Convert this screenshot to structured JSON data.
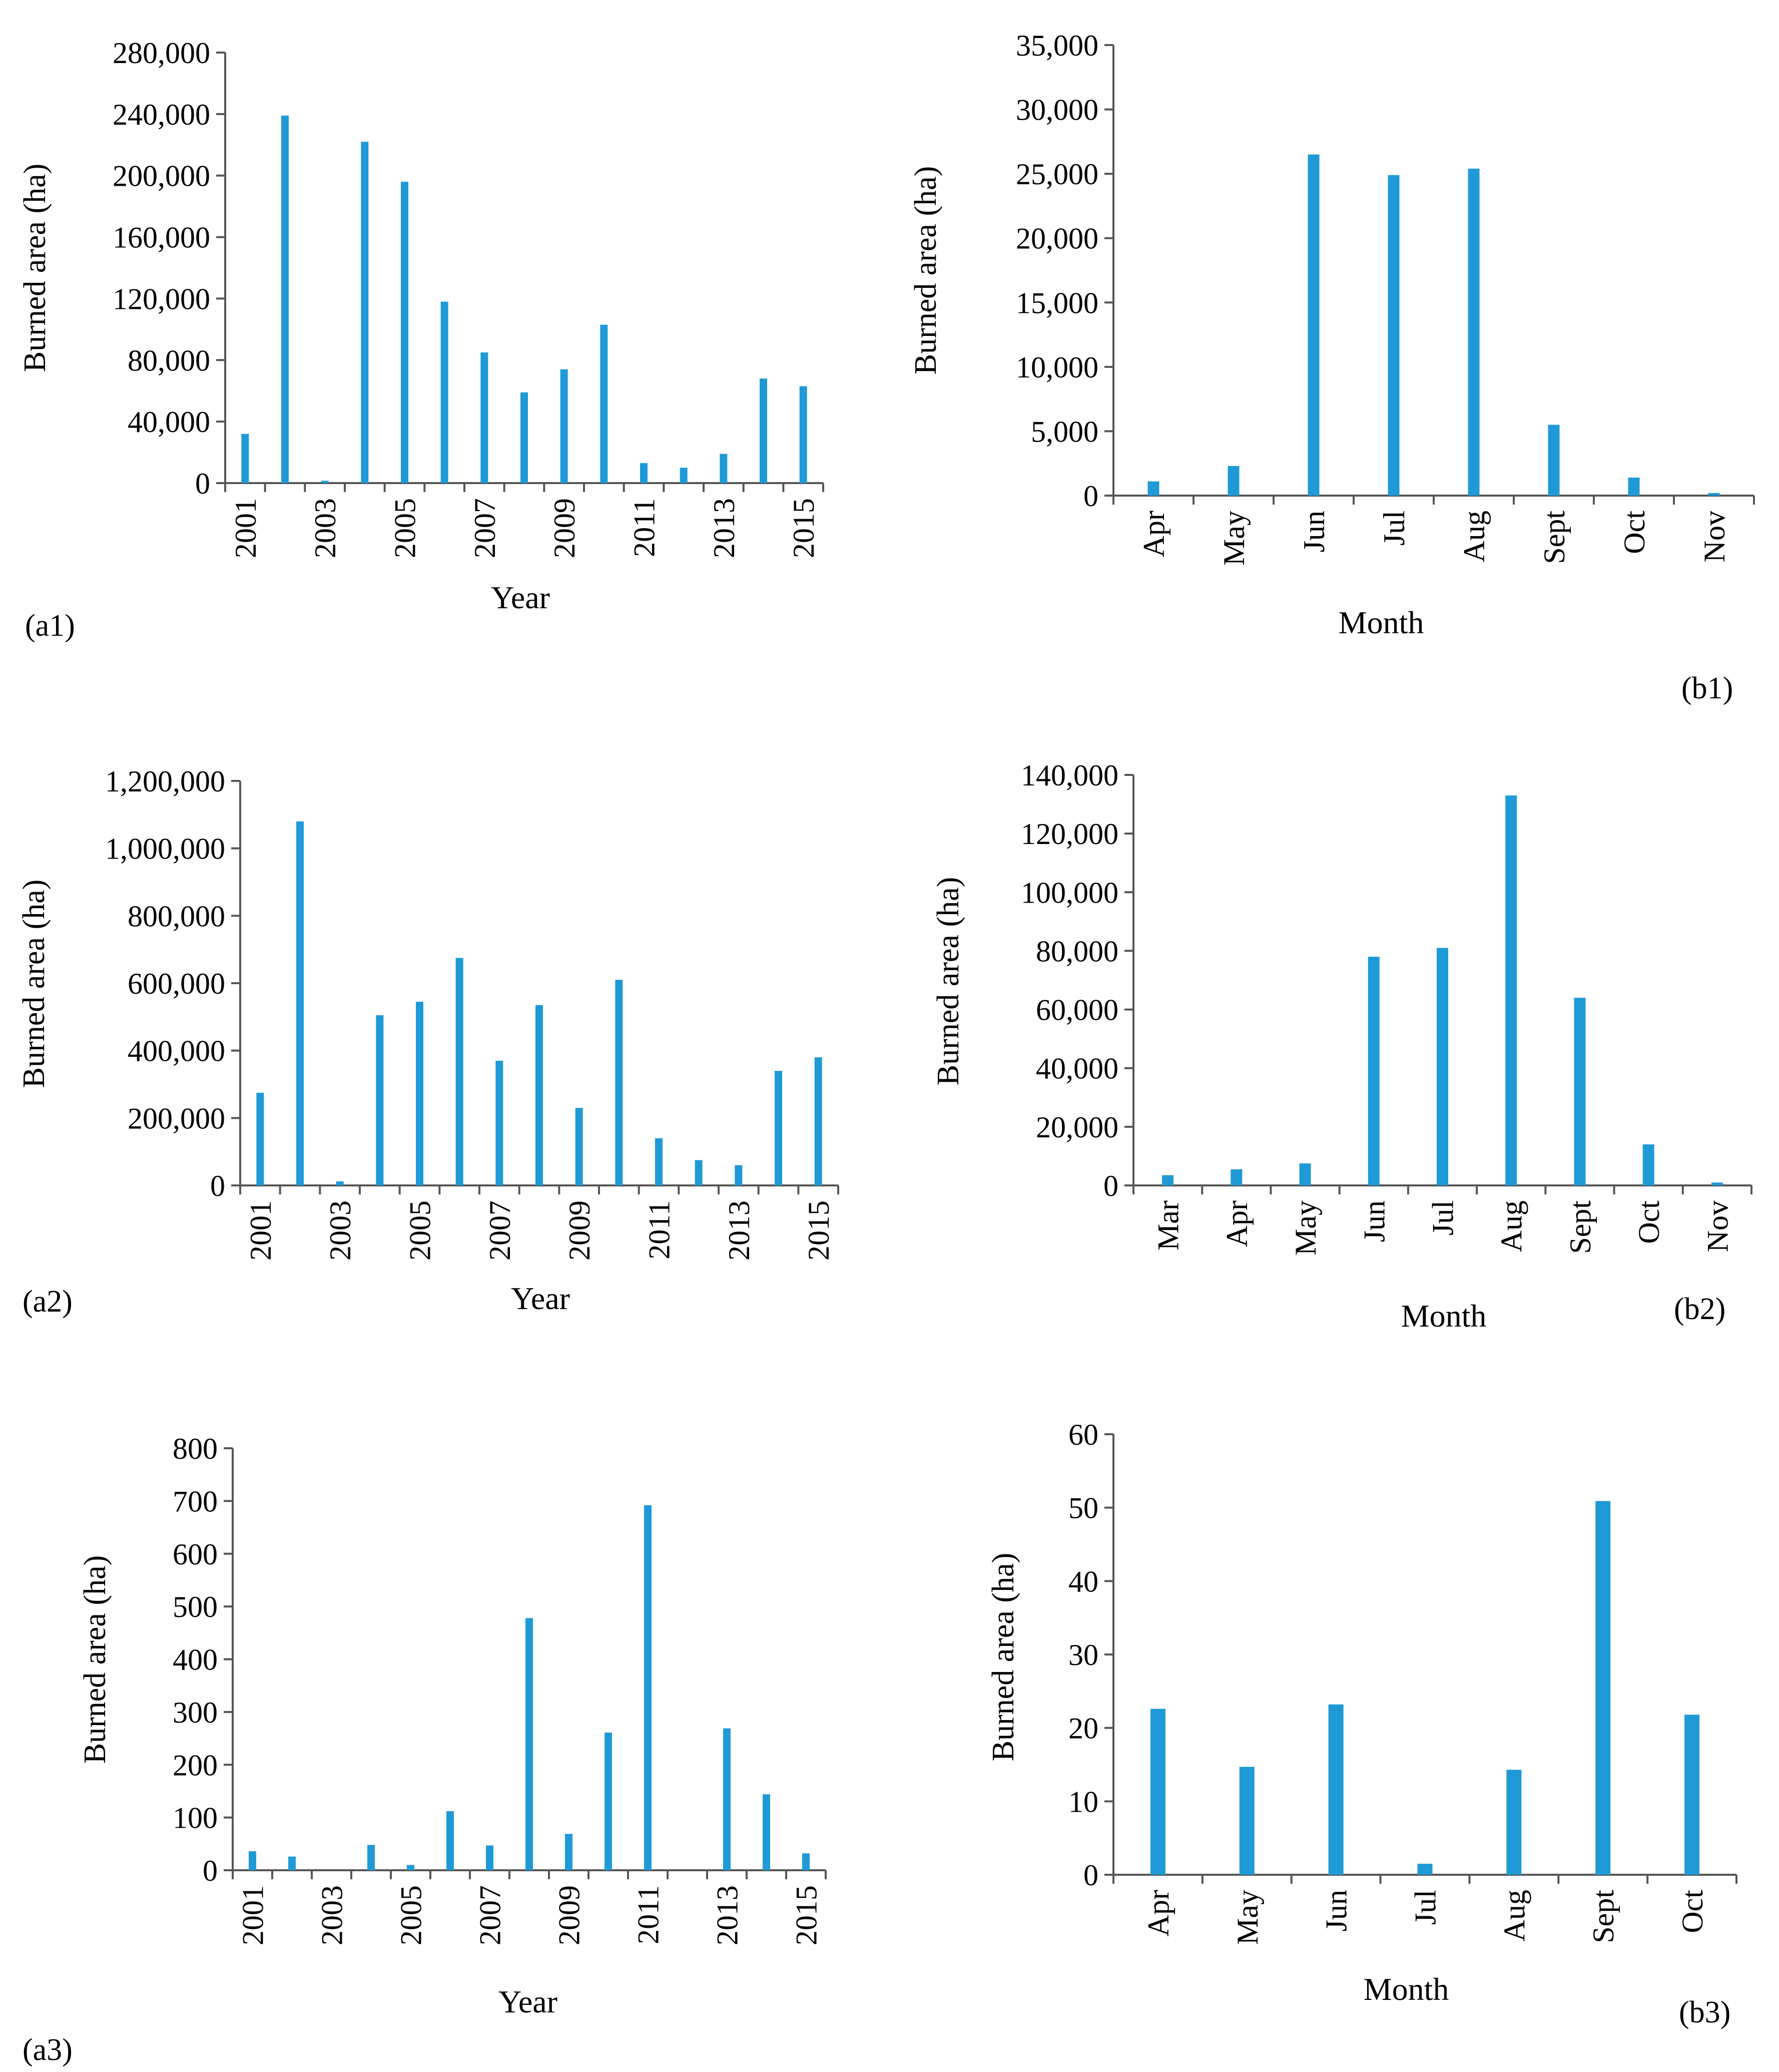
{
  "colors": {
    "bar": "#1f9ad6",
    "axis": "#555555",
    "text": "#000000"
  },
  "chart_data": [
    {
      "id": "a1",
      "panel_label": "(a1)",
      "type": "bar",
      "xlabel": "Year",
      "ylabel": "Burned area (ha)",
      "ylim": [
        0,
        280000
      ],
      "yticks": [
        "0",
        "40,000",
        "80,000",
        "120,000",
        "160,000",
        "200,000",
        "240,000",
        "280,000"
      ],
      "categories": [
        "2001",
        "2002",
        "2003",
        "2004",
        "2005",
        "2006",
        "2007",
        "2008",
        "2009",
        "2010",
        "2011",
        "2012",
        "2013",
        "2014",
        "2015"
      ],
      "tick_labels": [
        "2001",
        "",
        "2003",
        "",
        "2005",
        "",
        "2007",
        "",
        "2009",
        "",
        "2011",
        "",
        "2013",
        "",
        "2015"
      ],
      "values": [
        32000,
        239000,
        1500,
        222000,
        196000,
        118000,
        85000,
        59000,
        74000,
        103000,
        13000,
        10000,
        19000,
        68000,
        63000
      ]
    },
    {
      "id": "b1",
      "panel_label": "(b1)",
      "type": "bar",
      "xlabel": "Month",
      "ylabel": "Burned area (ha)",
      "ylim": [
        0,
        35000
      ],
      "yticks": [
        "0",
        "5,000",
        "10,000",
        "15,000",
        "20,000",
        "25,000",
        "30,000",
        "35,000"
      ],
      "categories": [
        "Apr",
        "May",
        "Jun",
        "Jul",
        "Aug",
        "Sept",
        "Oct",
        "Nov"
      ],
      "tick_labels": [
        "Apr",
        "May",
        "Jun",
        "Jul",
        "Aug",
        "Sept",
        "Oct",
        "Nov"
      ],
      "values": [
        1100,
        2300,
        26500,
        24900,
        25400,
        5500,
        1400,
        200
      ]
    },
    {
      "id": "a2",
      "panel_label": "(a2)",
      "type": "bar",
      "xlabel": "Year",
      "ylabel": "Burned area (ha)",
      "ylim": [
        0,
        1200000
      ],
      "yticks": [
        "0",
        "200,000",
        "400,000",
        "600,000",
        "800,000",
        "1,000,000",
        "1,200,000"
      ],
      "categories": [
        "2001",
        "2002",
        "2003",
        "2004",
        "2005",
        "2006",
        "2007",
        "2008",
        "2009",
        "2010",
        "2011",
        "2012",
        "2013",
        "2014",
        "2015"
      ],
      "tick_labels": [
        "2001",
        "",
        "2003",
        "",
        "2005",
        "",
        "2007",
        "",
        "2009",
        "",
        "2011",
        "",
        "2013",
        "",
        "2015"
      ],
      "values": [
        275000,
        1080000,
        12000,
        505000,
        545000,
        675000,
        370000,
        535000,
        230000,
        610000,
        140000,
        75000,
        60000,
        340000,
        380000
      ]
    },
    {
      "id": "b2",
      "panel_label": "(b2)",
      "type": "bar",
      "xlabel": "Month",
      "ylabel": "Burned area (ha)",
      "ylim": [
        0,
        140000
      ],
      "yticks": [
        "0",
        "20,000",
        "40,000",
        "60,000",
        "80,000",
        "100,000",
        "120,000",
        "140,000"
      ],
      "categories": [
        "Mar",
        "Apr",
        "May",
        "Jun",
        "Jul",
        "Aug",
        "Sept",
        "Oct",
        "Nov"
      ],
      "tick_labels": [
        "Mar",
        "Apr",
        "May",
        "Jun",
        "Jul",
        "Aug",
        "Sept",
        "Oct",
        "Nov"
      ],
      "values": [
        3500,
        5500,
        7500,
        78000,
        81000,
        133000,
        64000,
        14000,
        1000
      ]
    },
    {
      "id": "a3",
      "panel_label": "(a3)",
      "type": "bar",
      "xlabel": "Year",
      "ylabel": "Burned area (ha)",
      "ylim": [
        0,
        800
      ],
      "yticks": [
        "0",
        "100",
        "200",
        "300",
        "400",
        "500",
        "600",
        "700",
        "800"
      ],
      "categories": [
        "2001",
        "2002",
        "2003",
        "2004",
        "2005",
        "2006",
        "2007",
        "2008",
        "2009",
        "2010",
        "2011",
        "2012",
        "2013",
        "2014",
        "2015"
      ],
      "tick_labels": [
        "2001",
        "",
        "2003",
        "",
        "2005",
        "",
        "2007",
        "",
        "2009",
        "",
        "2011",
        "",
        "2013",
        "",
        "2015"
      ],
      "values": [
        36,
        26,
        0,
        48,
        10,
        112,
        47,
        478,
        69,
        261,
        692,
        0,
        269,
        144,
        32
      ]
    },
    {
      "id": "b3",
      "panel_label": "(b3)",
      "type": "bar",
      "xlabel": "Month",
      "ylabel": "Burned area (ha)",
      "ylim": [
        0,
        60
      ],
      "yticks": [
        "0",
        "10",
        "20",
        "30",
        "40",
        "50",
        "60"
      ],
      "categories": [
        "Apr",
        "May",
        "Jun",
        "Jul",
        "Aug",
        "Sept",
        "Oct"
      ],
      "tick_labels": [
        "Apr",
        "May",
        "Jun",
        "Jul",
        "Aug",
        "Sept",
        "Oct"
      ],
      "values": [
        22.6,
        14.7,
        23.2,
        1.5,
        14.3,
        50.9,
        21.8
      ]
    }
  ]
}
